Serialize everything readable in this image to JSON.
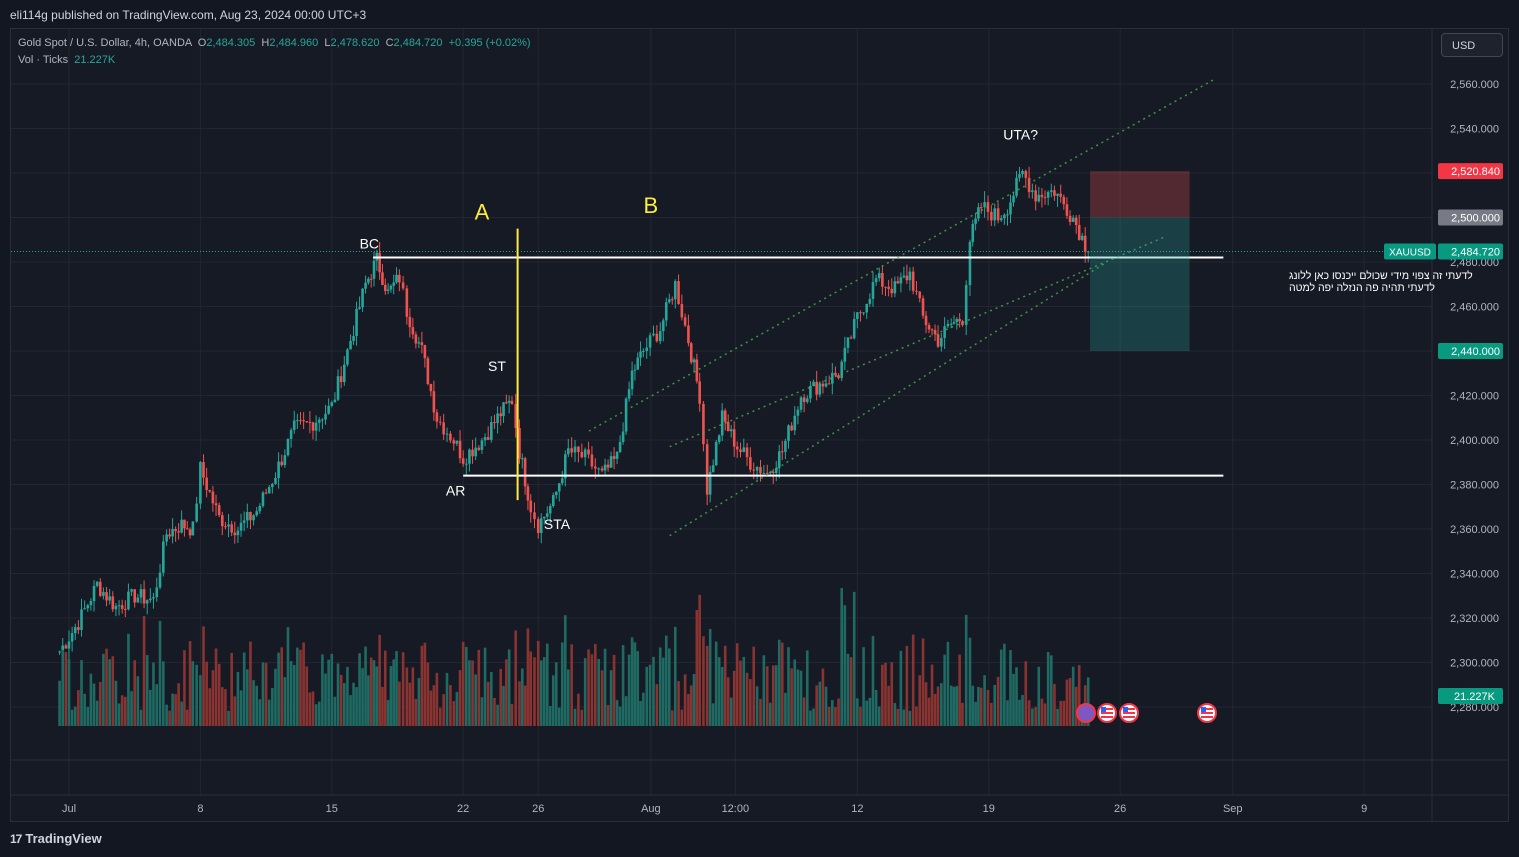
{
  "header": {
    "published": "eli114g published on TradingView.com, Aug 23, 2024 00:00 UTC+3"
  },
  "legend": {
    "symbol": "Gold Spot / U.S. Dollar, 4h, OANDA",
    "o_label": "O",
    "o": "2,484.305",
    "h_label": "H",
    "h": "2,484.960",
    "l_label": "L",
    "l": "2,478.620",
    "c_label": "C",
    "c": "2,484.720",
    "change": "+0.395 (+0.02%)",
    "volume_label": "Vol · Ticks",
    "volume": "21.227K"
  },
  "currency_button": "USD",
  "footer": {
    "logo": "TradingView",
    "logo_mark": "17"
  },
  "colors": {
    "up": "#26a69a",
    "down": "#ef5350",
    "background": "#161a25",
    "grid": "#232631",
    "annotation_yellow": "#ffeb3b",
    "channel": "#4caf50"
  },
  "chart_data": {
    "type": "candlestick",
    "symbol": "XAUUSD",
    "timeframe": "4h",
    "ylim": [
      2270,
      2570
    ],
    "y_ticks": [
      2280,
      2300,
      2320,
      2340,
      2360,
      2380,
      2400,
      2420,
      2440,
      2460,
      2480,
      2500,
      2520,
      2540,
      2560
    ],
    "y_tick_labels": [
      "2,280.000",
      "2,300.000",
      "2,320.000",
      "2,340.000",
      "2,360.000",
      "2,380.000",
      "2,400.000",
      "2,420.000",
      "2,440.000",
      "2,460.000",
      "2,480.000",
      "2,500.000",
      "2,520.000",
      "2,540.000",
      "2,560.000"
    ],
    "x_ticks": [
      {
        "label": "Jul",
        "day": 1
      },
      {
        "label": "8",
        "day": 8
      },
      {
        "label": "15",
        "day": 15
      },
      {
        "label": "22",
        "day": 22
      },
      {
        "label": "26",
        "day": 26
      },
      {
        "label": "Aug",
        "day": 32
      },
      {
        "label": "12:00",
        "day": 36.5
      },
      {
        "label": "12",
        "day": 43
      },
      {
        "label": "19",
        "day": 50
      },
      {
        "label": "26",
        "day": 57
      },
      {
        "label": "Sep",
        "day": 63
      },
      {
        "label": "9",
        "day": 70
      }
    ],
    "grid": true,
    "key_points": [
      {
        "day": 0.5,
        "price": 2305
      },
      {
        "day": 1.5,
        "price": 2318
      },
      {
        "day": 2.5,
        "price": 2335
      },
      {
        "day": 3.5,
        "price": 2325
      },
      {
        "day": 4.5,
        "price": 2330
      },
      {
        "day": 5.5,
        "price": 2328
      },
      {
        "day": 6.2,
        "price": 2358
      },
      {
        "day": 7.0,
        "price": 2362
      },
      {
        "day": 7.6,
        "price": 2360
      },
      {
        "day": 8.0,
        "price": 2387
      },
      {
        "day": 9.0,
        "price": 2365
      },
      {
        "day": 10.0,
        "price": 2360
      },
      {
        "day": 11.0,
        "price": 2368
      },
      {
        "day": 12.0,
        "price": 2385
      },
      {
        "day": 13.0,
        "price": 2405
      },
      {
        "day": 14.0,
        "price": 2408
      },
      {
        "day": 15.0,
        "price": 2415
      },
      {
        "day": 16.0,
        "price": 2445
      },
      {
        "day": 16.8,
        "price": 2470
      },
      {
        "day": 17.4,
        "price": 2481
      },
      {
        "day": 18.0,
        "price": 2466
      },
      {
        "day": 18.6,
        "price": 2473
      },
      {
        "day": 19.0,
        "price": 2458
      },
      {
        "day": 19.8,
        "price": 2440
      },
      {
        "day": 20.6,
        "price": 2410
      },
      {
        "day": 21.5,
        "price": 2400
      },
      {
        "day": 22.0,
        "price": 2392
      },
      {
        "day": 23.0,
        "price": 2400
      },
      {
        "day": 24.0,
        "price": 2412
      },
      {
        "day": 24.6,
        "price": 2418
      },
      {
        "day": 25.0,
        "price": 2395
      },
      {
        "day": 25.6,
        "price": 2370
      },
      {
        "day": 26.0,
        "price": 2362
      },
      {
        "day": 26.8,
        "price": 2372
      },
      {
        "day": 27.6,
        "price": 2395
      },
      {
        "day": 28.5,
        "price": 2392
      },
      {
        "day": 29.4,
        "price": 2384
      },
      {
        "day": 30.2,
        "price": 2392
      },
      {
        "day": 31.0,
        "price": 2430
      },
      {
        "day": 31.6,
        "price": 2440
      },
      {
        "day": 32.5,
        "price": 2450
      },
      {
        "day": 33.3,
        "price": 2470
      },
      {
        "day": 34.0,
        "price": 2445
      },
      {
        "day": 34.6,
        "price": 2420
      },
      {
        "day": 35.0,
        "price": 2378
      },
      {
        "day": 35.8,
        "price": 2410
      },
      {
        "day": 36.6,
        "price": 2397
      },
      {
        "day": 37.3,
        "price": 2390
      },
      {
        "day": 38.2,
        "price": 2385
      },
      {
        "day": 39.0,
        "price": 2395
      },
      {
        "day": 40.0,
        "price": 2420
      },
      {
        "day": 41.0,
        "price": 2425
      },
      {
        "day": 42.0,
        "price": 2430
      },
      {
        "day": 43.0,
        "price": 2455
      },
      {
        "day": 44.0,
        "price": 2472
      },
      {
        "day": 45.0,
        "price": 2468
      },
      {
        "day": 45.8,
        "price": 2475
      },
      {
        "day": 46.5,
        "price": 2455
      },
      {
        "day": 47.3,
        "price": 2445
      },
      {
        "day": 48.0,
        "price": 2452
      },
      {
        "day": 48.6,
        "price": 2455
      },
      {
        "day": 49.0,
        "price": 2490
      },
      {
        "day": 49.6,
        "price": 2505
      },
      {
        "day": 50.5,
        "price": 2500
      },
      {
        "day": 51.0,
        "price": 2505
      },
      {
        "day": 51.8,
        "price": 2520
      },
      {
        "day": 52.5,
        "price": 2510
      },
      {
        "day": 53.5,
        "price": 2512
      },
      {
        "day": 54.5,
        "price": 2500
      },
      {
        "day": 55.3,
        "price": 2484.72
      }
    ],
    "horizontal_lines": [
      {
        "price": 2482,
        "from_day": 17.2,
        "to_day": 62.5,
        "color": "#ffffff"
      },
      {
        "price": 2384,
        "from_day": 22.0,
        "to_day": 62.5,
        "color": "#ffffff"
      }
    ],
    "vertical_line": {
      "day": 24.9,
      "from_price": 2395,
      "to_price": 2398,
      "color": "#ffeb3b",
      "top_price": 2495,
      "bottom_price": 2373
    },
    "channel": {
      "upper": [
        {
          "day": 28.7,
          "price": 2404
        },
        {
          "day": 62.0,
          "price": 2562
        }
      ],
      "middle": [
        {
          "day": 33.0,
          "price": 2397
        },
        {
          "day": 59.3,
          "price": 2491
        }
      ],
      "lower": [
        {
          "day": 33.0,
          "price": 2357
        },
        {
          "day": 56.3,
          "price": 2480
        }
      ]
    },
    "position": {
      "from_day": 55.4,
      "to_day": 60.7,
      "stop": 2520.84,
      "entry": 2500,
      "target": 2440,
      "stop_label": "2,520.840",
      "entry_label": "2,500.000",
      "target_label": "2,440.000"
    },
    "last_price": {
      "symbol": "XAUUSD",
      "value": 2484.72,
      "label": "2,484.720"
    },
    "volume_last_label": "21.227K",
    "annotations": [
      {
        "text": "A",
        "day": 23.0,
        "price": 2499,
        "color": "#ffeb3b",
        "size": 22
      },
      {
        "text": "B",
        "day": 32.0,
        "price": 2502,
        "color": "#ffeb3b",
        "size": 22
      },
      {
        "text": "BC",
        "day": 17.0,
        "price": 2486,
        "color": "#ffffff",
        "size": 14
      },
      {
        "text": "ST",
        "day": 23.8,
        "price": 2431,
        "color": "#ffffff",
        "size": 14
      },
      {
        "text": "AR",
        "day": 21.6,
        "price": 2375,
        "color": "#ffffff",
        "size": 14
      },
      {
        "text": "STA",
        "day": 27.0,
        "price": 2360,
        "color": "#ffffff",
        "size": 14
      },
      {
        "text": "UTA?",
        "day": 51.7,
        "price": 2535,
        "color": "#ffffff",
        "size": 14
      }
    ],
    "note_lines": [
      "לדעתי זה צפוי מידי שכולם ייכנסו כאן ללונג",
      "לדעתי תהיה פה הנזלה יפה למטה"
    ]
  }
}
